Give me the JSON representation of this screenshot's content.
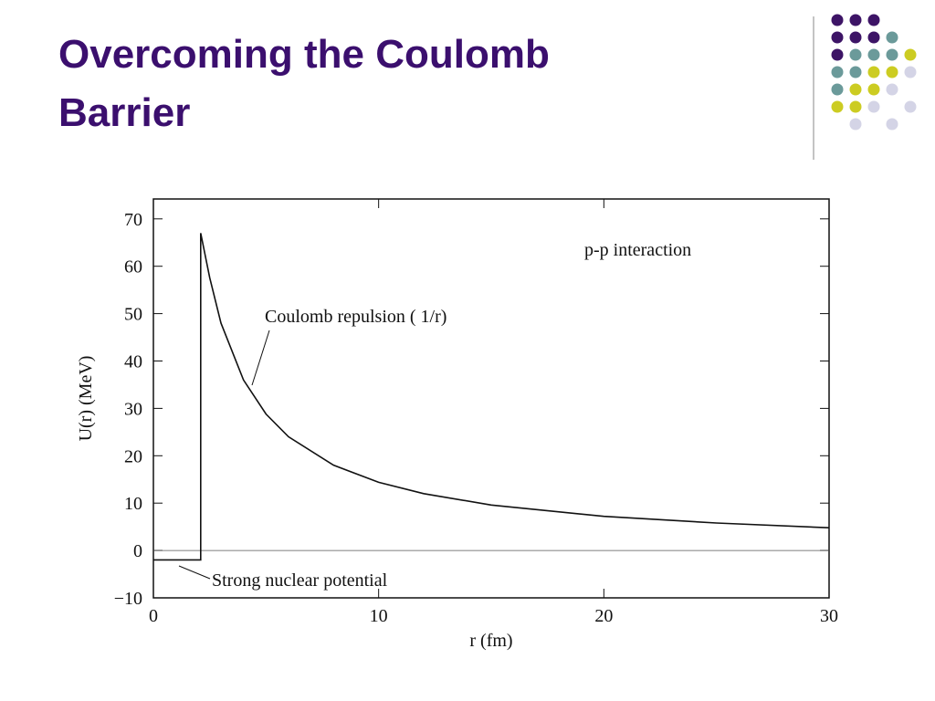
{
  "chart_data": {
    "type": "line",
    "title": "Overcoming the Coulomb Barrier",
    "x_label": "r (fm)",
    "y_label": "U(r) (MeV)",
    "xlim": [
      0,
      30
    ],
    "ylim": [
      -10,
      74.2
    ],
    "xticks": [
      0,
      10,
      20,
      30
    ],
    "yticks": [
      {
        "value": -10,
        "label": "−10"
      },
      0,
      10,
      20,
      30,
      40,
      50,
      60,
      70
    ],
    "series": [
      {
        "color": "#111111",
        "x": [
          0,
          2.1,
          2.1,
          2.5,
          3,
          4,
          5,
          6,
          8,
          10,
          12,
          15,
          20,
          25,
          30
        ],
        "values": [
          -2,
          -2,
          67,
          57.6,
          48,
          36,
          28.8,
          24,
          18,
          14.4,
          12,
          9.6,
          7.2,
          5.8,
          4.8
        ]
      }
    ],
    "annotations": [
      "p-p interaction",
      "Coulomb repulsion ( 1/r)",
      "Strong nuclear potential"
    ]
  }
}
